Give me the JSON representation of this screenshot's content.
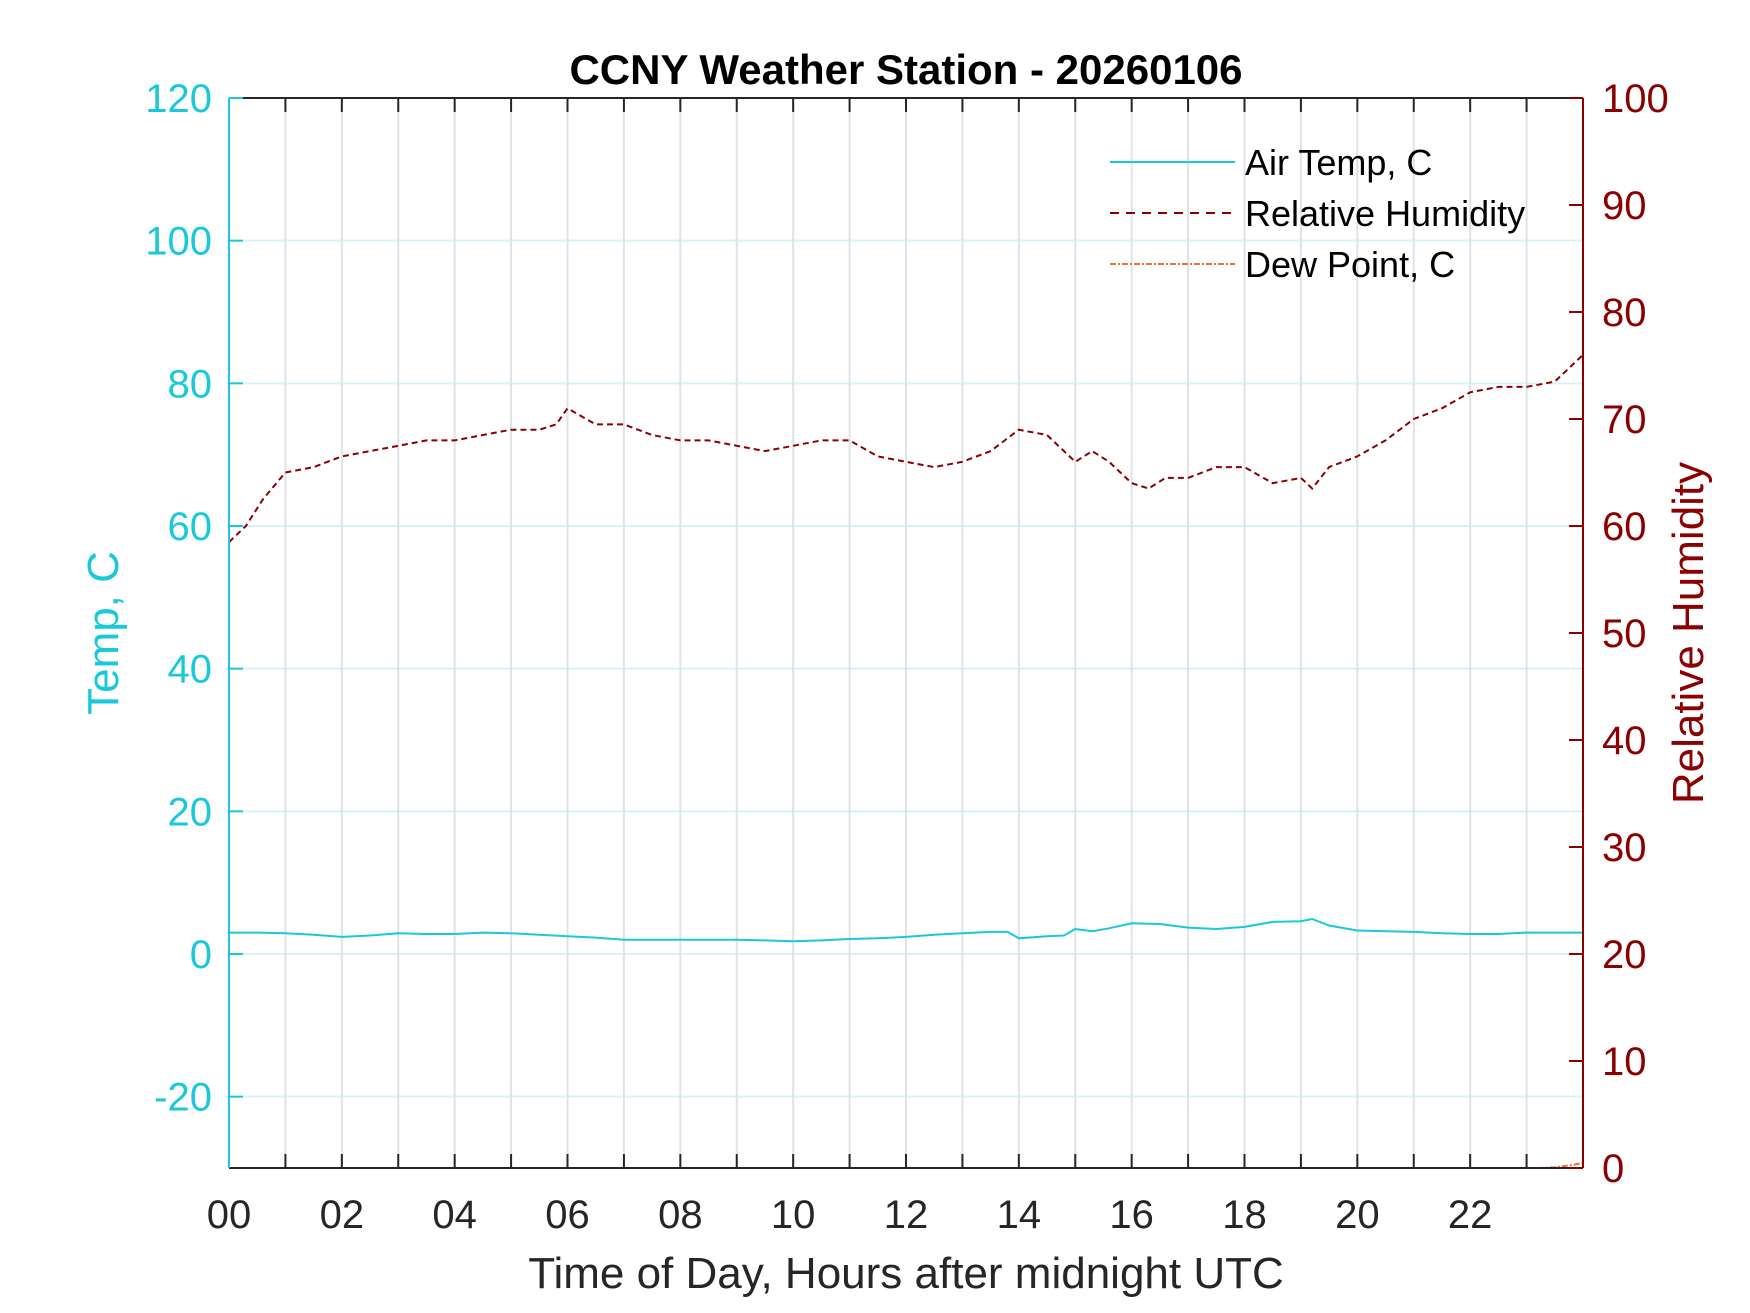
{
  "chart_data": {
    "type": "line",
    "title": "CCNY Weather Station - 20260106",
    "xlabel": "Time of Day, Hours after midnight UTC",
    "ylabel_left": "Temp, C",
    "ylabel_right": "Relative Humidity",
    "xlim": [
      0,
      24
    ],
    "ylim_left": [
      -30,
      120
    ],
    "ylim_right": [
      0,
      100
    ],
    "x_tick_labels": [
      "00",
      "02",
      "04",
      "06",
      "08",
      "10",
      "12",
      "14",
      "16",
      "18",
      "20",
      "22"
    ],
    "x_tick_values": [
      0,
      2,
      4,
      6,
      8,
      10,
      12,
      14,
      16,
      18,
      20,
      22
    ],
    "left_tick_labels": [
      "120",
      "100",
      "80",
      "60",
      "40",
      "20",
      "0",
      "-20"
    ],
    "left_tick_values": [
      120,
      100,
      80,
      60,
      40,
      20,
      0,
      -20
    ],
    "right_tick_labels": [
      "100",
      "90",
      "80",
      "70",
      "60",
      "50",
      "40",
      "30",
      "20",
      "10",
      "0"
    ],
    "right_tick_values": [
      100,
      90,
      80,
      70,
      60,
      50,
      40,
      30,
      20,
      10,
      0
    ],
    "grid": true,
    "legend_position": "top-right",
    "colors": {
      "temp": "#1ac8db",
      "rh": "#8b0000",
      "dew": "#e8703a",
      "vgrid": "#dfe3e7",
      "hgrid": "#d9f2f7",
      "axis": "#262626"
    },
    "series": [
      {
        "name": "Air Temp, C",
        "axis": "left",
        "style": "solid",
        "x": [
          0,
          0.5,
          1,
          1.5,
          2,
          2.5,
          3,
          3.5,
          4,
          4.5,
          5,
          5.5,
          6,
          6.5,
          7,
          7.5,
          8,
          8.5,
          9,
          9.5,
          10,
          10.5,
          11,
          11.5,
          12,
          12.5,
          13,
          13.5,
          13.8,
          14,
          14.5,
          14.8,
          15,
          15.3,
          15.6,
          16,
          16.5,
          17,
          17.5,
          18,
          18.5,
          19,
          19.2,
          19.5,
          20,
          20.5,
          21,
          21.5,
          22,
          22.5,
          23,
          23.5,
          24
        ],
        "y": [
          3,
          3,
          2.9,
          2.7,
          2.4,
          2.6,
          2.9,
          2.8,
          2.8,
          3,
          2.9,
          2.7,
          2.5,
          2.3,
          2,
          2,
          2,
          2,
          2,
          1.9,
          1.8,
          1.9,
          2.1,
          2.2,
          2.4,
          2.7,
          2.9,
          3.1,
          3.1,
          2.2,
          2.5,
          2.6,
          3.5,
          3.2,
          3.6,
          4.3,
          4.2,
          3.7,
          3.5,
          3.8,
          4.5,
          4.6,
          4.9,
          4,
          3.3,
          3.2,
          3.1,
          2.9,
          2.8,
          2.8,
          3,
          3,
          3
        ]
      },
      {
        "name": "Relative Humidity",
        "axis": "right",
        "style": "dashed",
        "x": [
          0,
          0.3,
          0.6,
          1,
          1.5,
          2,
          2.5,
          3,
          3.5,
          4,
          4.5,
          5,
          5.5,
          5.8,
          6,
          6.5,
          7,
          7.5,
          8,
          8.5,
          9,
          9.5,
          10,
          10.5,
          11,
          11.5,
          12,
          12.5,
          13,
          13.5,
          14,
          14.5,
          15,
          15.3,
          15.6,
          16,
          16.3,
          16.6,
          17,
          17.5,
          18,
          18.5,
          19,
          19.2,
          19.5,
          20,
          20.5,
          21,
          21.5,
          22,
          22.5,
          23,
          23.5,
          24
        ],
        "y": [
          58.5,
          60,
          62.5,
          65,
          65.5,
          66.5,
          67,
          67.5,
          68,
          68,
          68.5,
          69,
          69,
          69.5,
          71,
          69.5,
          69.5,
          68.5,
          68,
          68,
          67.5,
          67,
          67.5,
          68,
          68,
          66.5,
          66,
          65.5,
          66,
          67,
          69,
          68.5,
          66,
          67,
          66,
          64,
          63.5,
          64.5,
          64.5,
          65.5,
          65.5,
          64,
          64.5,
          63.5,
          65.5,
          66.5,
          68,
          70,
          71,
          72.5,
          73,
          73,
          73.5,
          76
        ]
      },
      {
        "name": "Dew Point, C",
        "axis": "left",
        "style": "dashdot",
        "x": [
          23.2,
          23.5,
          23.8,
          24
        ],
        "y": [
          -30,
          -29.9,
          -29.6,
          -29.3
        ]
      }
    ]
  }
}
